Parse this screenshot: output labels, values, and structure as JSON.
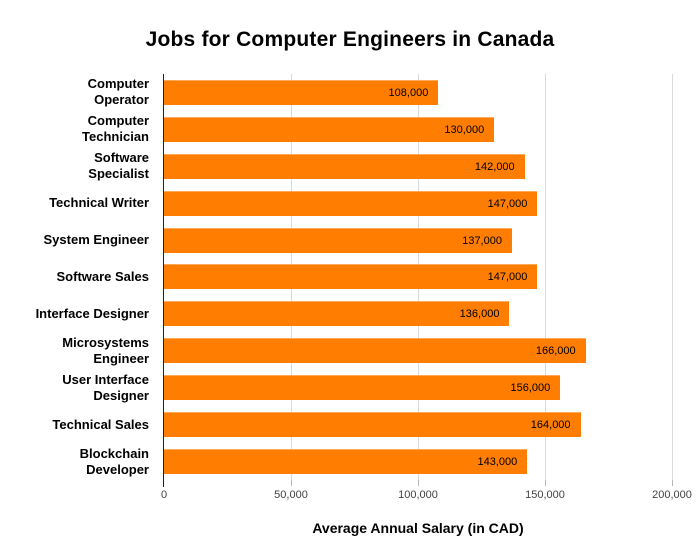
{
  "title": "Jobs for Computer Engineers in Canada",
  "colors": {
    "bar": "#FF7D00",
    "gridline": "#D9D9D9",
    "axis_line": "#212121",
    "tick": "#B7B7B7",
    "value_label_text": "#000000"
  },
  "chart_data": {
    "type": "bar",
    "orientation": "horizontal",
    "title": "Jobs for Computer Engineers in Canada",
    "xlabel": "Average Annual Salary (in CAD)",
    "ylabel": "",
    "xlim": [
      0,
      200000
    ],
    "grid": true,
    "legend": false,
    "categories": [
      "Computer\nOperator",
      "Computer\nTechnician",
      "Software\nSpecialist",
      "Technical Writer",
      "System Engineer",
      "Software Sales",
      "Interface Designer",
      "Microsystems\nEngineer",
      "User Interface\nDesigner",
      "Technical Sales",
      "Blockchain\nDeveloper"
    ],
    "values": [
      108000,
      130000,
      142000,
      147000,
      137000,
      147000,
      136000,
      166000,
      156000,
      164000,
      143000
    ],
    "value_labels": [
      "108,000",
      "130,000",
      "142,000",
      "147,000",
      "137,000",
      "147,000",
      "136,000",
      "166,000",
      "156,000",
      "164,000",
      "143,000"
    ],
    "x_ticks": [
      {
        "value": 0,
        "label": "0"
      },
      {
        "value": 50000,
        "label": "50,000"
      },
      {
        "value": 100000,
        "label": "100,000"
      },
      {
        "value": 150000,
        "label": "150,000"
      },
      {
        "value": 200000,
        "label": "200,000"
      }
    ]
  }
}
